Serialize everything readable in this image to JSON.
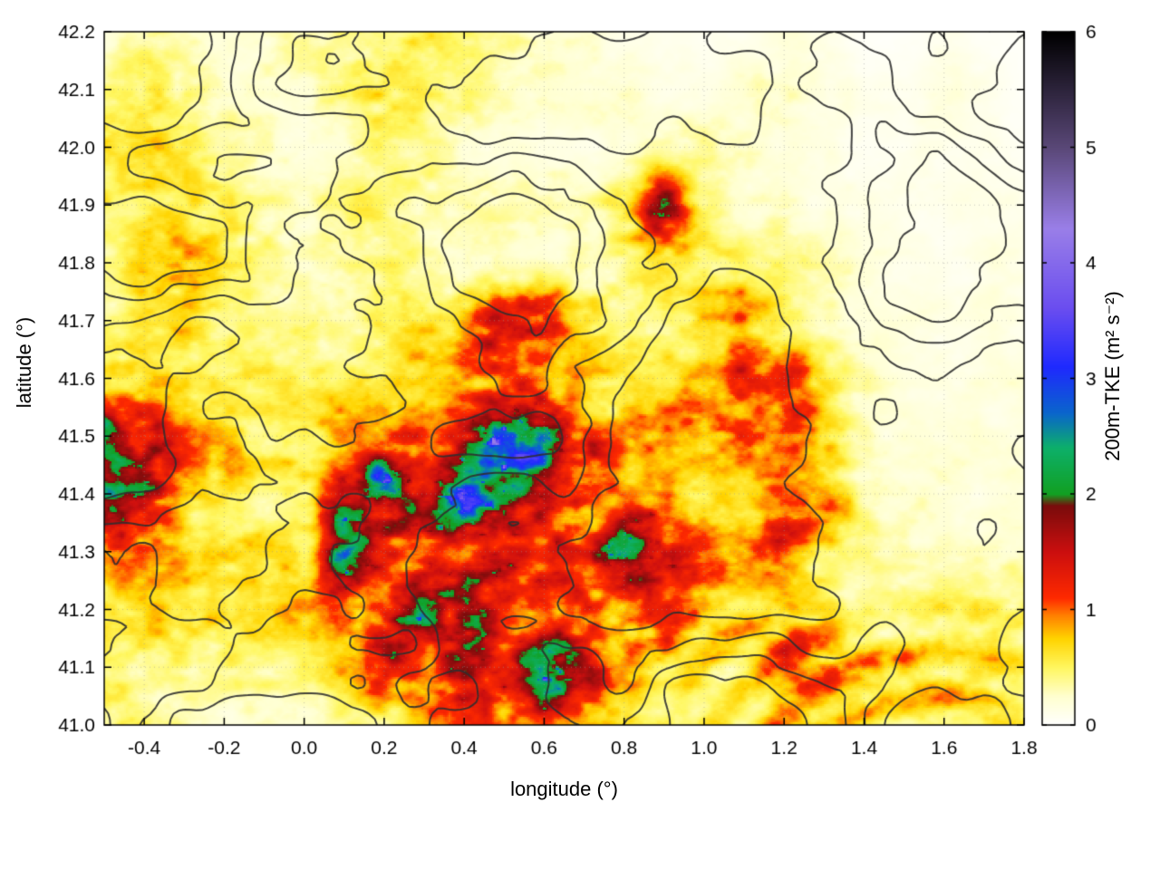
{
  "figure": {
    "background": "#ffffff",
    "frame_color": "#000000",
    "grid_color": "#9a9a9a",
    "contour_color": "#2f2f2f"
  },
  "chart_data": {
    "type": "heatmap",
    "title": "",
    "xlabel": "longitude (°)",
    "ylabel": "latitude (°)",
    "xlim": [
      -0.5,
      1.8
    ],
    "ylim": [
      41.0,
      42.2
    ],
    "x_tick_values": [
      -0.4,
      -0.2,
      0.0,
      0.2,
      0.4,
      0.6,
      0.8,
      1.0,
      1.2,
      1.4,
      1.6,
      1.8
    ],
    "x_tick_labels": [
      "-0.4",
      "-0.2",
      "0.0",
      "0.2",
      "0.4",
      "0.6",
      "0.8",
      "1.0",
      "1.2",
      "1.4",
      "1.6",
      "1.8"
    ],
    "y_tick_values": [
      41.0,
      41.1,
      41.2,
      41.3,
      41.4,
      41.5,
      41.6,
      41.7,
      41.8,
      41.9,
      42.0,
      42.1,
      42.2
    ],
    "y_tick_labels": [
      "41.0",
      "41.1",
      "41.2",
      "41.3",
      "41.4",
      "41.5",
      "41.6",
      "41.7",
      "41.8",
      "41.9",
      "42.0",
      "42.1",
      "42.2"
    ],
    "colorbar": {
      "label": "200m-TKE (m² s⁻²)",
      "min": 0,
      "max": 6,
      "tick_labels": [
        "0",
        "1",
        "2",
        "3",
        "4",
        "5",
        "6"
      ],
      "palette": [
        {
          "v": 0.0,
          "c": "#ffffff"
        },
        {
          "v": 0.25,
          "c": "#ffffd0"
        },
        {
          "v": 0.5,
          "c": "#fff760"
        },
        {
          "v": 0.75,
          "c": "#ffd400"
        },
        {
          "v": 0.95,
          "c": "#ff8000"
        },
        {
          "v": 1.1,
          "c": "#ff2a00"
        },
        {
          "v": 1.5,
          "c": "#cc0f0f"
        },
        {
          "v": 1.9,
          "c": "#7a0c0c"
        },
        {
          "v": 2.0,
          "c": "#12a022"
        },
        {
          "v": 2.4,
          "c": "#0db06a"
        },
        {
          "v": 2.7,
          "c": "#0a66cc"
        },
        {
          "v": 3.1,
          "c": "#1f2aff"
        },
        {
          "v": 3.6,
          "c": "#6a4df0"
        },
        {
          "v": 4.3,
          "c": "#9a7fe8"
        },
        {
          "v": 5.0,
          "c": "#5a4878"
        },
        {
          "v": 6.0,
          "c": "#000000"
        }
      ]
    },
    "grid_desc": "TKE field sampled on coarse grid; rows ordered lat 42.2 to 41.0 (step -0.1), cols lon -0.5 to 1.8 (step 0.1); units m2 s-2",
    "lon_start": -0.5,
    "lon_step": 0.1,
    "lat_start": 42.2,
    "lat_step": -0.1,
    "values": [
      [
        0.3,
        0.4,
        0.3,
        0.2,
        0.2,
        0.3,
        0.3,
        0.4,
        0.4,
        0.3,
        0.3,
        0.2,
        0.2,
        0.1,
        0.1,
        0.1,
        0.1,
        0.15,
        0.1,
        0.05,
        0.05,
        0.1,
        0.05,
        0.05
      ],
      [
        0.4,
        0.5,
        0.4,
        0.35,
        0.3,
        0.35,
        0.4,
        0.5,
        0.45,
        0.4,
        0.3,
        0.25,
        0.2,
        0.2,
        0.1,
        0.1,
        0.2,
        0.25,
        0.15,
        0.1,
        0.1,
        0.15,
        0.1,
        0.05
      ],
      [
        0.5,
        0.55,
        0.45,
        0.3,
        0.25,
        0.25,
        0.3,
        0.45,
        0.4,
        0.3,
        0.25,
        0.2,
        0.15,
        0.2,
        0.25,
        0.3,
        0.2,
        0.2,
        0.15,
        0.1,
        0.1,
        0.1,
        0.1,
        0.05
      ],
      [
        0.45,
        0.5,
        0.5,
        0.45,
        0.3,
        0.3,
        0.55,
        0.45,
        0.3,
        0.3,
        0.3,
        0.3,
        0.3,
        0.5,
        1.5,
        0.5,
        0.3,
        0.3,
        0.2,
        0.1,
        0.1,
        0.1,
        0.1,
        0.1
      ],
      [
        0.5,
        0.6,
        0.7,
        0.6,
        0.4,
        0.3,
        0.3,
        0.4,
        0.35,
        0.3,
        0.35,
        0.35,
        0.4,
        0.45,
        0.5,
        0.4,
        0.35,
        0.4,
        0.3,
        0.2,
        0.1,
        0.1,
        0.15,
        0.1
      ],
      [
        0.5,
        0.6,
        0.6,
        0.5,
        0.4,
        0.4,
        0.4,
        0.5,
        0.6,
        0.8,
        1.2,
        1.1,
        0.6,
        0.5,
        0.5,
        0.6,
        0.8,
        0.5,
        0.3,
        0.2,
        0.2,
        0.2,
        0.2,
        0.1
      ],
      [
        0.6,
        0.7,
        0.6,
        0.5,
        0.5,
        0.5,
        0.5,
        0.55,
        0.6,
        0.8,
        1.0,
        1.0,
        0.8,
        0.6,
        0.7,
        1.0,
        1.4,
        1.2,
        0.5,
        0.3,
        0.2,
        0.2,
        0.2,
        0.2
      ],
      [
        1.8,
        1.2,
        0.8,
        0.6,
        0.5,
        0.6,
        0.7,
        0.8,
        1.0,
        1.6,
        2.6,
        2.2,
        1.2,
        0.8,
        0.7,
        0.9,
        1.4,
        1.5,
        0.8,
        0.4,
        0.3,
        0.2,
        0.2,
        0.2
      ],
      [
        2.0,
        1.4,
        0.8,
        0.7,
        0.6,
        0.8,
        1.6,
        3.2,
        1.6,
        2.8,
        1.8,
        1.1,
        0.9,
        0.8,
        0.7,
        0.6,
        0.8,
        1.0,
        0.9,
        0.4,
        0.3,
        0.3,
        0.2,
        0.2
      ],
      [
        1.3,
        0.9,
        0.7,
        0.6,
        0.6,
        0.8,
        3.4,
        1.5,
        1.2,
        1.0,
        1.2,
        1.0,
        1.0,
        1.9,
        1.2,
        1.2,
        0.9,
        1.2,
        0.6,
        0.4,
        0.3,
        0.3,
        0.3,
        0.3
      ],
      [
        0.8,
        0.7,
        0.6,
        0.5,
        0.6,
        0.7,
        0.9,
        1.2,
        2.9,
        2.6,
        1.5,
        1.2,
        1.0,
        0.8,
        0.9,
        0.7,
        0.5,
        0.6,
        0.5,
        0.4,
        0.4,
        0.4,
        0.4,
        0.4
      ],
      [
        0.5,
        0.5,
        0.5,
        0.4,
        0.4,
        0.5,
        0.8,
        1.2,
        1.0,
        2.0,
        1.2,
        2.5,
        1.5,
        0.8,
        0.6,
        0.6,
        0.8,
        1.1,
        0.9,
        0.8,
        0.6,
        0.5,
        0.5,
        0.5
      ],
      [
        0.3,
        0.4,
        0.4,
        0.3,
        0.3,
        0.4,
        0.6,
        0.7,
        0.8,
        0.9,
        0.8,
        0.9,
        0.7,
        0.6,
        0.5,
        0.5,
        0.6,
        0.6,
        0.6,
        0.6,
        0.55,
        0.5,
        0.5,
        0.5
      ]
    ],
    "contour_overlay": {
      "present": true,
      "color": "#2f2f2f",
      "description": "terrain elevation contour lines drawn over the TKE shading",
      "levels": 4
    }
  }
}
